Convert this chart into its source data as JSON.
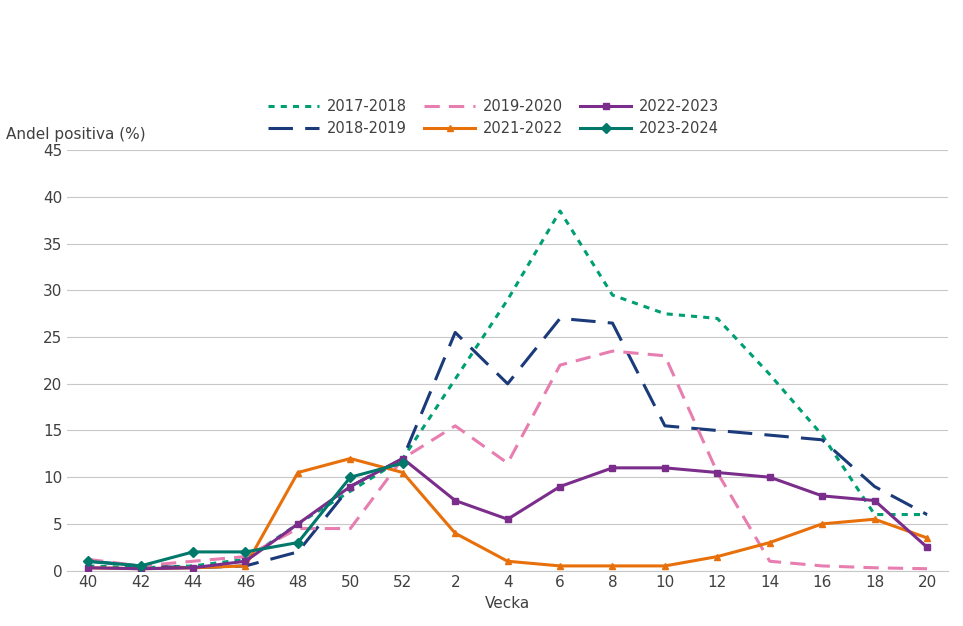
{
  "ylabel": "Andel positiva (%)",
  "xlabel": "Vecka",
  "x_ticks_labels": [
    40,
    42,
    44,
    46,
    48,
    50,
    52,
    2,
    4,
    6,
    8,
    10,
    12,
    14,
    16,
    18,
    20
  ],
  "x_numeric": [
    1,
    3,
    5,
    7,
    9,
    11,
    13,
    15,
    17,
    19,
    21,
    23,
    25,
    27,
    29,
    31,
    33
  ],
  "ylim": [
    0,
    45
  ],
  "yticks": [
    0,
    5,
    10,
    15,
    20,
    25,
    30,
    35,
    40,
    45
  ],
  "series": {
    "2017-2018": {
      "color": "#009E73",
      "linestyle": "dotted",
      "linewidth": 2.2,
      "marker": null,
      "values": [
        0.5,
        0.3,
        0.5,
        1.2,
        5.0,
        8.5,
        12.0,
        20.5,
        29.0,
        38.5,
        29.5,
        27.5,
        27.0,
        21.0,
        14.5,
        6.0,
        6.0
      ]
    },
    "2018-2019": {
      "color": "#1A3A7A",
      "linestyle": "dashed",
      "linewidth": 2.2,
      "marker": null,
      "values": [
        1.0,
        0.5,
        0.3,
        0.5,
        2.0,
        9.0,
        12.0,
        25.5,
        20.0,
        27.0,
        26.5,
        15.5,
        15.0,
        14.5,
        14.0,
        9.0,
        6.0
      ]
    },
    "2019-2020": {
      "color": "#E87DB0",
      "linestyle": "dashed",
      "linewidth": 2.2,
      "marker": null,
      "values": [
        1.2,
        0.5,
        1.0,
        1.5,
        4.5,
        4.5,
        12.0,
        15.5,
        11.5,
        22.0,
        23.5,
        23.0,
        10.5,
        1.0,
        0.5,
        0.3,
        0.2
      ]
    },
    "2021-2022": {
      "color": "#E8700A",
      "linestyle": "solid",
      "linewidth": 2.2,
      "marker": "^",
      "markersize": 5,
      "values": [
        0.3,
        0.2,
        0.3,
        0.5,
        10.5,
        12.0,
        10.5,
        4.0,
        1.0,
        0.5,
        0.5,
        0.5,
        1.5,
        3.0,
        5.0,
        5.5,
        3.5
      ]
    },
    "2022-2023": {
      "color": "#7B2D8B",
      "linestyle": "solid",
      "linewidth": 2.2,
      "marker": "s",
      "markersize": 5,
      "values": [
        0.3,
        0.2,
        0.3,
        1.0,
        5.0,
        9.0,
        12.0,
        7.5,
        5.5,
        9.0,
        11.0,
        11.0,
        10.5,
        10.0,
        8.0,
        7.5,
        2.5
      ]
    },
    "2023-2024": {
      "color": "#00796B",
      "linestyle": "solid",
      "linewidth": 2.2,
      "marker": "D",
      "markersize": 5,
      "values": [
        1.0,
        0.5,
        2.0,
        2.0,
        3.0,
        10.0,
        11.5,
        null,
        null,
        null,
        null,
        null,
        null,
        null,
        null,
        null,
        null
      ]
    }
  },
  "background_color": "#FFFFFF",
  "grid_color": "#C8C8C8",
  "font_color": "#404040",
  "legend_fontsize": 10.5,
  "axis_fontsize": 11,
  "tick_fontsize": 11
}
